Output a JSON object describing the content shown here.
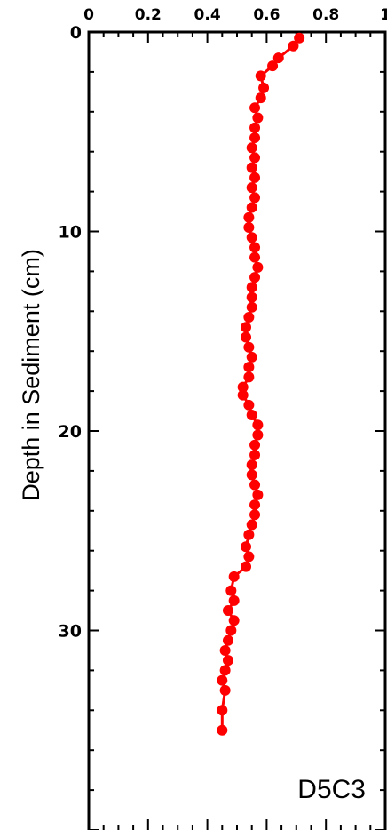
{
  "chart_data": {
    "type": "line",
    "title": "",
    "xlabel": "",
    "ylabel": "Depth in Sediment (cm)",
    "panel_label": "D5C3",
    "xlim": [
      0,
      1
    ],
    "ylim": [
      0,
      40
    ],
    "y_inverted": true,
    "x_axis_position": "top",
    "x_ticks": [
      0,
      0.2,
      0.4,
      0.6,
      0.8,
      1
    ],
    "x_tick_labels": [
      "0",
      "0.2",
      "0.4",
      "0.6",
      "0.8",
      "1"
    ],
    "y_ticks": [
      0,
      10,
      20,
      30
    ],
    "y_tick_labels": [
      "0",
      "10",
      "20",
      "30"
    ],
    "grid": false,
    "marker_color": "#ff0000",
    "series": [
      {
        "x": [
          0.71,
          0.69,
          0.64,
          0.62,
          0.58,
          0.59,
          0.58,
          0.56,
          0.57,
          0.56,
          0.56,
          0.55,
          0.56,
          0.55,
          0.56,
          0.55,
          0.56,
          0.55,
          0.54,
          0.54,
          0.55,
          0.56,
          0.56,
          0.57,
          0.56,
          0.55,
          0.55,
          0.55,
          0.54,
          0.53,
          0.53,
          0.54,
          0.55,
          0.54,
          0.54,
          0.52,
          0.52,
          0.54,
          0.55,
          0.57,
          0.57,
          0.56,
          0.56,
          0.55,
          0.55,
          0.56,
          0.57,
          0.56,
          0.56,
          0.55,
          0.54,
          0.53,
          0.54,
          0.53,
          0.49,
          0.48,
          0.49,
          0.47,
          0.49,
          0.48,
          0.47,
          0.46,
          0.47,
          0.46,
          0.45,
          0.46,
          0.45,
          0.45
        ],
        "y": [
          0.3,
          0.7,
          1.3,
          1.7,
          2.2,
          2.8,
          3.3,
          3.8,
          4.3,
          4.8,
          5.3,
          5.8,
          6.3,
          6.8,
          7.3,
          7.8,
          8.3,
          8.8,
          9.3,
          9.8,
          10.3,
          10.8,
          11.3,
          11.8,
          12.3,
          12.8,
          13.3,
          13.8,
          14.3,
          14.8,
          15.3,
          15.8,
          16.3,
          16.8,
          17.3,
          17.8,
          18.2,
          18.7,
          19.2,
          19.7,
          20.2,
          20.7,
          21.2,
          21.7,
          22.2,
          22.7,
          23.2,
          23.7,
          24.2,
          24.7,
          25.2,
          25.8,
          26.3,
          26.8,
          27.3,
          28.0,
          28.5,
          29.0,
          29.5,
          30.0,
          30.5,
          31.0,
          31.5,
          32.0,
          32.5,
          33.0,
          34.0,
          35.0
        ]
      }
    ]
  }
}
